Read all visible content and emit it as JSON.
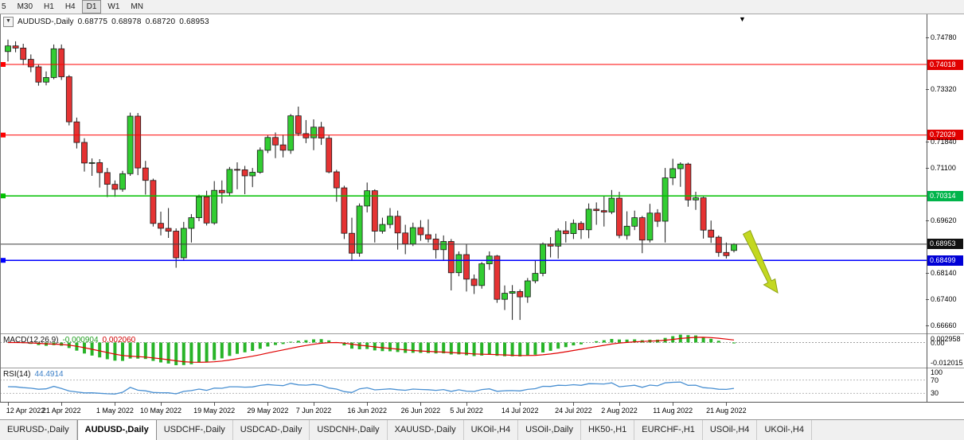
{
  "toolbar": {
    "timeframes": [
      "5",
      "M30",
      "H1",
      "H4",
      "D1",
      "W1",
      "MN"
    ],
    "active": "D1"
  },
  "icons": {
    "shift_marker": "▼",
    "symbol_dropdown": "▼"
  },
  "title": {
    "symbol": "AUDUSD-,Daily",
    "open": "0.68775",
    "high": "0.68978",
    "low": "0.68720",
    "close": "0.68953"
  },
  "colors": {
    "bull": "#32CD32",
    "bear": "#E53333",
    "wick": "#1A1A1A",
    "macd_hist": "#28B428",
    "macd_signal": "#E00000",
    "rsi_line": "#4A90D2",
    "arrow": "#C3D821",
    "arrow_stroke": "#8FA315"
  },
  "price_axis": {
    "labels": [
      {
        "text": "0.74780",
        "price": 0.7478,
        "badge": false
      },
      {
        "text": "0.74018",
        "price": 0.74018,
        "badge": true,
        "color": "#E10000"
      },
      {
        "text": "0.73320",
        "price": 0.7332,
        "badge": false
      },
      {
        "text": "0.72029",
        "price": 0.72029,
        "badge": true,
        "color": "#E10000"
      },
      {
        "text": "0.71840",
        "price": 0.7184,
        "badge": false
      },
      {
        "text": "0.71100",
        "price": 0.711,
        "badge": false
      },
      {
        "text": "0.70314",
        "price": 0.70314,
        "badge": true,
        "color": "#00B44A"
      },
      {
        "text": "0.69620",
        "price": 0.6962,
        "badge": false
      },
      {
        "text": "0.68953",
        "price": 0.68953,
        "badge": true,
        "color": "#111111"
      },
      {
        "text": "0.68499",
        "price": 0.68499,
        "badge": true,
        "color": "#0000D6"
      },
      {
        "text": "0.68140",
        "price": 0.6814,
        "badge": false
      },
      {
        "text": "0.67400",
        "price": 0.674,
        "badge": false
      },
      {
        "text": "0.66660",
        "price": 0.6666,
        "badge": false
      }
    ]
  },
  "macd": {
    "name": "MACD(12,26,9)",
    "main_value": "-0.000904",
    "signal_value": "0.002060",
    "axis_labels": [
      "0.002958",
      "0.00",
      "-0.012015"
    ],
    "axis_values": [
      0.002958,
      0,
      -0.012015
    ]
  },
  "rsi": {
    "name": "RSI(14)",
    "value": "44.4914",
    "axis_labels": [
      "100",
      "70",
      "30"
    ],
    "axis_values": [
      100,
      70,
      30
    ],
    "levels": [
      70,
      30
    ]
  },
  "date_axis": {
    "labels": [
      {
        "text": "12 Apr 2022",
        "idx": 0
      },
      {
        "text": "21 Apr 2022",
        "idx": 7
      },
      {
        "text": "1 May 2022",
        "idx": 14
      },
      {
        "text": "10 May 2022",
        "idx": 20
      },
      {
        "text": "19 May 2022",
        "idx": 27
      },
      {
        "text": "29 May 2022",
        "idx": 34
      },
      {
        "text": "7 Jun 2022",
        "idx": 40
      },
      {
        "text": "16 Jun 2022",
        "idx": 47
      },
      {
        "text": "26 Jun 2022",
        "idx": 54
      },
      {
        "text": "5 Jul 2022",
        "idx": 60
      },
      {
        "text": "14 Jul 2022",
        "idx": 67
      },
      {
        "text": "24 Jul 2022",
        "idx": 74
      },
      {
        "text": "2 Aug 2022",
        "idx": 80
      },
      {
        "text": "11 Aug 2022",
        "idx": 87
      },
      {
        "text": "21 Aug 2022",
        "idx": 94
      }
    ]
  },
  "tabs": [
    {
      "label": "EURUSD-,Daily",
      "active": false
    },
    {
      "label": "AUDUSD-,Daily",
      "active": true
    },
    {
      "label": "USDCHF-,Daily",
      "active": false
    },
    {
      "label": "USDCAD-,Daily",
      "active": false
    },
    {
      "label": "USDCNH-,Daily",
      "active": false
    },
    {
      "label": "XAUUSD-,Daily",
      "active": false
    },
    {
      "label": "UKOil-,H4",
      "active": false
    },
    {
      "label": "USOil-,Daily",
      "active": false
    },
    {
      "label": "HK50-,H1",
      "active": false
    },
    {
      "label": "EURCHF-,H1",
      "active": false
    },
    {
      "label": "USOil-,H4",
      "active": false
    },
    {
      "label": "UKOil-,H4",
      "active": false
    }
  ],
  "chart_data": {
    "type": "candlestick",
    "symbol": "AUDUSD",
    "timeframe": "Daily",
    "ylim": [
      0.6644,
      0.7543
    ],
    "hlines": [
      {
        "price": 0.74018,
        "color": "#FF0000",
        "width": 1,
        "handle": true
      },
      {
        "price": 0.72029,
        "color": "#FF0000",
        "width": 1,
        "handle": true
      },
      {
        "price": 0.70314,
        "color": "#00C000",
        "width": 1.5,
        "handle": true
      },
      {
        "price": 0.68499,
        "color": "#0000FF",
        "width": 1.5,
        "handle": true
      },
      {
        "price": 0.68953,
        "color": "#3C3C3C",
        "width": 1,
        "handle": false
      }
    ],
    "ohlc": [
      [
        0.7438,
        0.7472,
        0.741,
        0.7454
      ],
      [
        0.7454,
        0.7467,
        0.7436,
        0.7448
      ],
      [
        0.7448,
        0.746,
        0.74,
        0.7416
      ],
      [
        0.7416,
        0.743,
        0.738,
        0.7395
      ],
      [
        0.7395,
        0.7402,
        0.7342,
        0.7352
      ],
      [
        0.7352,
        0.7382,
        0.7343,
        0.7365
      ],
      [
        0.7365,
        0.7458,
        0.736,
        0.7446
      ],
      [
        0.7446,
        0.7458,
        0.7358,
        0.7367
      ],
      [
        0.7367,
        0.7372,
        0.723,
        0.724
      ],
      [
        0.724,
        0.7252,
        0.7165,
        0.7182
      ],
      [
        0.7182,
        0.7194,
        0.71,
        0.7124
      ],
      [
        0.7124,
        0.7137,
        0.7088,
        0.7125
      ],
      [
        0.7125,
        0.7135,
        0.7055,
        0.7097
      ],
      [
        0.7097,
        0.711,
        0.7028,
        0.7064
      ],
      [
        0.7064,
        0.7075,
        0.7029,
        0.705
      ],
      [
        0.705,
        0.7102,
        0.7043,
        0.7094
      ],
      [
        0.7094,
        0.7266,
        0.7088,
        0.7256
      ],
      [
        0.7256,
        0.7265,
        0.709,
        0.711
      ],
      [
        0.711,
        0.713,
        0.7035,
        0.7075
      ],
      [
        0.7075,
        0.708,
        0.6945,
        0.6954
      ],
      [
        0.6954,
        0.6987,
        0.692,
        0.694
      ],
      [
        0.694,
        0.6997,
        0.6913,
        0.6932
      ],
      [
        0.6932,
        0.694,
        0.6829,
        0.6857
      ],
      [
        0.6857,
        0.6958,
        0.685,
        0.694
      ],
      [
        0.694,
        0.698,
        0.69,
        0.697
      ],
      [
        0.697,
        0.7035,
        0.696,
        0.7029
      ],
      [
        0.7029,
        0.7046,
        0.6948,
        0.6955
      ],
      [
        0.6955,
        0.7073,
        0.695,
        0.7047
      ],
      [
        0.7047,
        0.7075,
        0.701,
        0.704
      ],
      [
        0.704,
        0.7113,
        0.7033,
        0.7106
      ],
      [
        0.7106,
        0.7126,
        0.705,
        0.7105
      ],
      [
        0.7105,
        0.7116,
        0.7036,
        0.7088
      ],
      [
        0.7088,
        0.711,
        0.7056,
        0.7098
      ],
      [
        0.7098,
        0.7168,
        0.7094,
        0.716
      ],
      [
        0.716,
        0.7202,
        0.7152,
        0.7196
      ],
      [
        0.7196,
        0.721,
        0.7138,
        0.7175
      ],
      [
        0.7175,
        0.7204,
        0.714,
        0.716
      ],
      [
        0.716,
        0.7262,
        0.715,
        0.7257
      ],
      [
        0.7257,
        0.7283,
        0.72,
        0.7207
      ],
      [
        0.7207,
        0.7245,
        0.718,
        0.7195
      ],
      [
        0.7195,
        0.7247,
        0.716,
        0.7225
      ],
      [
        0.7225,
        0.724,
        0.7175,
        0.7194
      ],
      [
        0.7194,
        0.7202,
        0.7095,
        0.7099
      ],
      [
        0.7099,
        0.7105,
        0.7015,
        0.7054
      ],
      [
        0.7054,
        0.706,
        0.691,
        0.6926
      ],
      [
        0.6926,
        0.697,
        0.685,
        0.687
      ],
      [
        0.687,
        0.701,
        0.686,
        0.7003
      ],
      [
        0.7003,
        0.7069,
        0.6985,
        0.7046
      ],
      [
        0.7046,
        0.705,
        0.69,
        0.6932
      ],
      [
        0.6932,
        0.697,
        0.6925,
        0.6951
      ],
      [
        0.6951,
        0.6997,
        0.694,
        0.6974
      ],
      [
        0.6974,
        0.699,
        0.688,
        0.6927
      ],
      [
        0.6927,
        0.695,
        0.6867,
        0.6896
      ],
      [
        0.6896,
        0.6956,
        0.689,
        0.6942
      ],
      [
        0.6942,
        0.6963,
        0.6905,
        0.6922
      ],
      [
        0.6922,
        0.6965,
        0.69,
        0.691
      ],
      [
        0.691,
        0.6925,
        0.6855,
        0.688
      ],
      [
        0.688,
        0.692,
        0.685,
        0.6903
      ],
      [
        0.6903,
        0.691,
        0.6765,
        0.6815
      ],
      [
        0.6815,
        0.6875,
        0.6805,
        0.6866
      ],
      [
        0.6866,
        0.6895,
        0.6762,
        0.6797
      ],
      [
        0.6797,
        0.681,
        0.6755,
        0.6779
      ],
      [
        0.6779,
        0.6845,
        0.677,
        0.684
      ],
      [
        0.684,
        0.6875,
        0.6823,
        0.6862
      ],
      [
        0.6862,
        0.6865,
        0.673,
        0.674
      ],
      [
        0.674,
        0.6779,
        0.671,
        0.6757
      ],
      [
        0.6757,
        0.678,
        0.6682,
        0.6762
      ],
      [
        0.6762,
        0.6768,
        0.6682,
        0.6747
      ],
      [
        0.6747,
        0.68,
        0.673,
        0.6792
      ],
      [
        0.6792,
        0.685,
        0.6785,
        0.6813
      ],
      [
        0.6813,
        0.69,
        0.6805,
        0.6896
      ],
      [
        0.6896,
        0.6915,
        0.6858,
        0.689
      ],
      [
        0.689,
        0.694,
        0.6855,
        0.6933
      ],
      [
        0.6933,
        0.696,
        0.69,
        0.6925
      ],
      [
        0.6925,
        0.6965,
        0.691,
        0.6954
      ],
      [
        0.6954,
        0.696,
        0.691,
        0.6936
      ],
      [
        0.6936,
        0.701,
        0.6912,
        0.6994
      ],
      [
        0.6994,
        0.7013,
        0.695,
        0.699
      ],
      [
        0.699,
        0.7033,
        0.6945,
        0.6986
      ],
      [
        0.6986,
        0.7048,
        0.698,
        0.7025
      ],
      [
        0.7025,
        0.7043,
        0.6912,
        0.692
      ],
      [
        0.692,
        0.6988,
        0.6908,
        0.6946
      ],
      [
        0.6946,
        0.699,
        0.6935,
        0.697
      ],
      [
        0.697,
        0.6975,
        0.687,
        0.6907
      ],
      [
        0.6907,
        0.7009,
        0.69,
        0.6983
      ],
      [
        0.6983,
        0.6994,
        0.6944,
        0.696
      ],
      [
        0.696,
        0.711,
        0.69,
        0.7082
      ],
      [
        0.7082,
        0.7136,
        0.7062,
        0.7108
      ],
      [
        0.7108,
        0.7126,
        0.7057,
        0.7121
      ],
      [
        0.7121,
        0.7125,
        0.7001,
        0.702
      ],
      [
        0.702,
        0.7043,
        0.6992,
        0.7026
      ],
      [
        0.7026,
        0.7029,
        0.6911,
        0.6935
      ],
      [
        0.6935,
        0.6962,
        0.6899,
        0.6915
      ],
      [
        0.6915,
        0.692,
        0.686,
        0.6872
      ],
      [
        0.6872,
        0.69,
        0.6855,
        0.6863
      ],
      [
        0.68775,
        0.68978,
        0.6872,
        0.68953
      ]
    ]
  }
}
